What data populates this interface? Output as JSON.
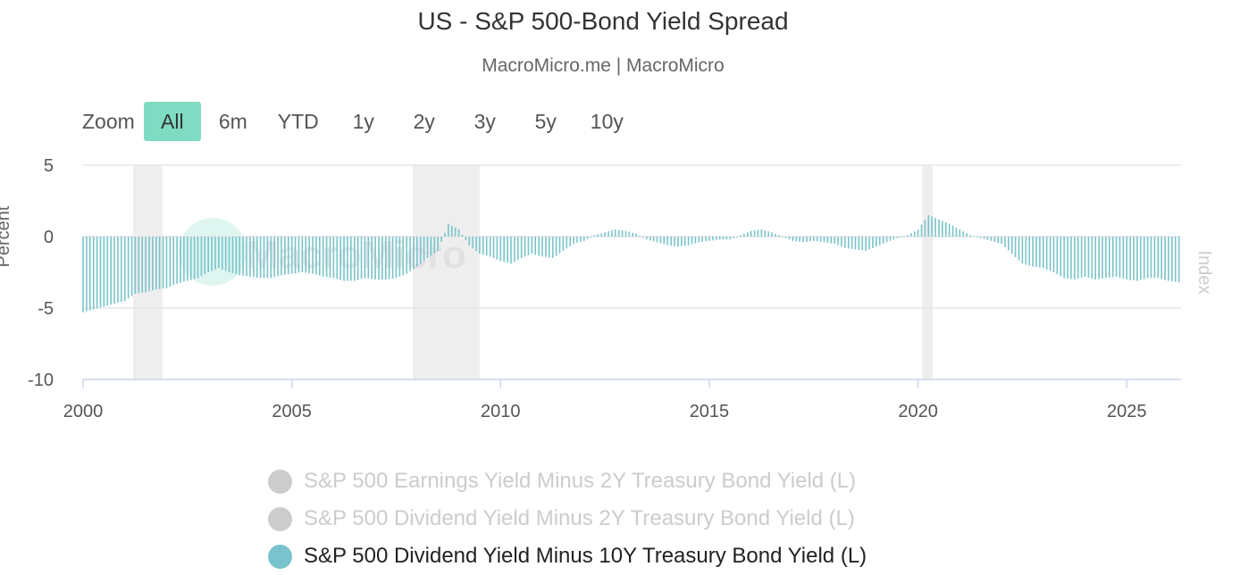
{
  "title": "US - S&P 500-Bond Yield Spread",
  "subtitle": "MacroMicro.me | MacroMicro",
  "zoom": {
    "label": "Zoom",
    "buttons": [
      "All",
      "6m",
      "YTD",
      "1y",
      "2y",
      "3y",
      "5y",
      "10y"
    ],
    "active": "All"
  },
  "chart_data": {
    "type": "bar",
    "title": "US - S&P 500-Bond Yield Spread",
    "ylabel": "Percent",
    "ylabel_right": "Index",
    "ylim": [
      -10,
      5
    ],
    "yticks": [
      5,
      0,
      -5,
      -10
    ],
    "xlim": [
      2000,
      2026.3
    ],
    "xticks": [
      2000,
      2005,
      2010,
      2015,
      2020,
      2025
    ],
    "grid": true,
    "recession_bands": [
      [
        2001.2,
        2001.9
      ],
      [
        2007.9,
        2009.5
      ],
      [
        2020.1,
        2020.35
      ]
    ],
    "bar_color": "#79c3cc",
    "x": [
      2000.0,
      2000.25,
      2000.5,
      2000.75,
      2001.0,
      2001.25,
      2001.5,
      2001.75,
      2002.0,
      2002.25,
      2002.5,
      2002.75,
      2003.0,
      2003.25,
      2003.5,
      2003.75,
      2004.0,
      2004.25,
      2004.5,
      2004.75,
      2005.0,
      2005.25,
      2005.5,
      2005.75,
      2006.0,
      2006.25,
      2006.5,
      2006.75,
      2007.0,
      2007.25,
      2007.5,
      2007.75,
      2008.0,
      2008.25,
      2008.5,
      2008.75,
      2009.0,
      2009.25,
      2009.5,
      2009.75,
      2010.0,
      2010.25,
      2010.5,
      2010.75,
      2011.0,
      2011.25,
      2011.5,
      2011.75,
      2012.0,
      2012.25,
      2012.5,
      2012.75,
      2013.0,
      2013.25,
      2013.5,
      2013.75,
      2014.0,
      2014.25,
      2014.5,
      2014.75,
      2015.0,
      2015.25,
      2015.5,
      2015.75,
      2016.0,
      2016.25,
      2016.5,
      2016.75,
      2017.0,
      2017.25,
      2017.5,
      2017.75,
      2018.0,
      2018.25,
      2018.5,
      2018.75,
      2019.0,
      2019.25,
      2019.5,
      2019.75,
      2020.0,
      2020.25,
      2020.5,
      2020.75,
      2021.0,
      2021.25,
      2021.5,
      2021.75,
      2022.0,
      2022.25,
      2022.5,
      2022.75,
      2023.0,
      2023.25,
      2023.5,
      2023.75,
      2024.0,
      2024.25,
      2024.5,
      2024.75,
      2025.0,
      2025.25,
      2025.5,
      2025.75,
      2026.0,
      2026.25
    ],
    "series": [
      {
        "name": "S&P 500 Earnings Yield Minus 2Y Treasury Bond Yield (L)",
        "visible": false,
        "color": "#cccccc"
      },
      {
        "name": "S&P 500 Dividend Yield Minus 2Y Treasury Bond Yield (L)",
        "visible": false,
        "color": "#cccccc"
      },
      {
        "name": "S&P 500 Dividend Yield Minus 10Y Treasury Bond Yield (L)",
        "visible": true,
        "color": "#79c3cc",
        "values": [
          -5.3,
          -5.1,
          -4.9,
          -4.7,
          -4.5,
          -4.0,
          -3.9,
          -3.7,
          -3.6,
          -3.3,
          -3.1,
          -2.9,
          -2.5,
          -2.2,
          -2.5,
          -2.7,
          -2.8,
          -2.9,
          -2.9,
          -2.7,
          -2.6,
          -2.5,
          -2.6,
          -2.8,
          -2.9,
          -3.1,
          -3.1,
          -2.9,
          -3.0,
          -3.0,
          -2.9,
          -2.6,
          -2.1,
          -1.5,
          -1.0,
          0.9,
          0.5,
          -0.6,
          -1.2,
          -1.4,
          -1.7,
          -1.9,
          -1.5,
          -1.2,
          -1.4,
          -1.5,
          -1.0,
          -0.5,
          -0.3,
          0.1,
          0.3,
          0.5,
          0.4,
          0.2,
          -0.2,
          -0.4,
          -0.6,
          -0.7,
          -0.6,
          -0.4,
          -0.3,
          -0.2,
          -0.2,
          0.1,
          0.4,
          0.5,
          0.3,
          0.0,
          -0.3,
          -0.4,
          -0.3,
          -0.4,
          -0.5,
          -0.8,
          -0.9,
          -1.0,
          -0.7,
          -0.4,
          -0.1,
          0.1,
          0.5,
          1.5,
          1.2,
          0.9,
          0.5,
          0.1,
          -0.1,
          -0.3,
          -0.5,
          -1.2,
          -1.9,
          -2.1,
          -2.2,
          -2.5,
          -2.9,
          -3.0,
          -2.8,
          -3.0,
          -2.9,
          -2.8,
          -3.0,
          -3.1,
          -2.9,
          -2.9,
          -3.1,
          -3.2
        ]
      }
    ]
  },
  "legend": [
    {
      "label": "S&P 500 Earnings Yield Minus 2Y Treasury Bond Yield (L)",
      "color": "#cccccc",
      "visible": false
    },
    {
      "label": "S&P 500 Dividend Yield Minus 2Y Treasury Bond Yield (L)",
      "color": "#cccccc",
      "visible": false
    },
    {
      "label": "S&P 500 Dividend Yield Minus 10Y Treasury Bond Yield (L)",
      "color": "#79c3cc",
      "visible": true
    }
  ]
}
